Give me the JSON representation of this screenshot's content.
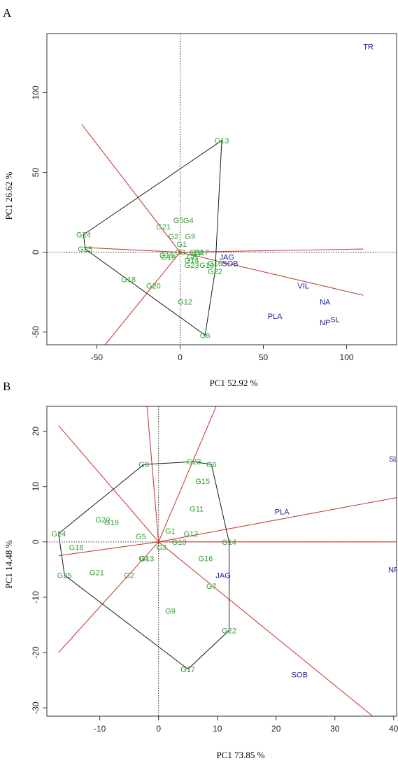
{
  "colors": {
    "genotype": "#2fa32f",
    "trait": "#1b1b9e",
    "hull": "#1a1a1a",
    "ray": "#c8403a",
    "frame": "#333333"
  },
  "chart_data": [
    {
      "panel": "A",
      "type": "scatter",
      "subtype": "GGE biplot (which-won-where)",
      "xlabel": "PC1 52.92 %",
      "ylabel": "PC1 26.62 %",
      "xlim": [
        -80,
        130
      ],
      "ylim": [
        -58,
        137
      ],
      "xticks": [
        -50,
        0,
        50,
        100
      ],
      "yticks": [
        -50,
        0,
        50,
        100
      ],
      "grid": false,
      "genotypes": [
        {
          "label": "G1",
          "x": 1,
          "y": 5
        },
        {
          "label": "G2",
          "x": -4,
          "y": 10
        },
        {
          "label": "G3",
          "x": 0,
          "y": 0
        },
        {
          "label": "G4",
          "x": 5,
          "y": 20
        },
        {
          "label": "G5",
          "x": -1,
          "y": 20
        },
        {
          "label": "G6",
          "x": 15,
          "y": -52
        },
        {
          "label": "G7",
          "x": 10,
          "y": -1
        },
        {
          "label": "G8",
          "x": 7,
          "y": -3
        },
        {
          "label": "G9",
          "x": 6,
          "y": 10
        },
        {
          "label": "G10",
          "x": 16,
          "y": -8
        },
        {
          "label": "G11",
          "x": 10,
          "y": 0
        },
        {
          "label": "G12",
          "x": 3,
          "y": -31
        },
        {
          "label": "G13",
          "x": 25,
          "y": 70
        },
        {
          "label": "G14",
          "x": 7,
          "y": -5
        },
        {
          "label": "G15",
          "x": -8,
          "y": -2
        },
        {
          "label": "G16",
          "x": 21,
          "y": -7
        },
        {
          "label": "G17",
          "x": 13,
          "y": 0
        },
        {
          "label": "G18",
          "x": -31,
          "y": -17
        },
        {
          "label": "G19",
          "x": -7,
          "y": -3
        },
        {
          "label": "G20",
          "x": -16,
          "y": -21
        },
        {
          "label": "G21",
          "x": -10,
          "y": 16
        },
        {
          "label": "G22",
          "x": 21,
          "y": -12
        },
        {
          "label": "G23",
          "x": 7,
          "y": -8
        },
        {
          "label": "G24",
          "x": -58,
          "y": 11
        },
        {
          "label": "G25",
          "x": -57,
          "y": 2
        }
      ],
      "traits": [
        {
          "label": "TR",
          "x": 113,
          "y": 129
        },
        {
          "label": "JAG",
          "x": 28,
          "y": -3
        },
        {
          "label": "SOB",
          "x": 30,
          "y": -7
        },
        {
          "label": "VIL",
          "x": 74,
          "y": -21
        },
        {
          "label": "NA",
          "x": 87,
          "y": -31
        },
        {
          "label": "SL",
          "x": 93,
          "y": -42
        },
        {
          "label": "NP",
          "x": 87,
          "y": -44
        },
        {
          "label": "PLA",
          "x": 57,
          "y": -40
        }
      ],
      "hull": [
        "G13",
        "G24",
        "G25",
        "G6",
        "G22"
      ],
      "rays": [
        {
          "x": -59,
          "y": 80
        },
        {
          "x": -45,
          "y": -58
        },
        {
          "x": 110,
          "y": -27
        },
        {
          "x": 110,
          "y": 2
        },
        {
          "x": -58,
          "y": 3
        }
      ]
    },
    {
      "panel": "B",
      "type": "scatter",
      "subtype": "GGE biplot (which-won-where)",
      "xlabel": "PC1 73.85 %",
      "ylabel": "PC1 14.48 %",
      "xlim": [
        -19,
        40.5
      ],
      "ylim": [
        -31.5,
        24.5
      ],
      "xticks": [
        -10,
        0,
        10,
        20,
        30,
        40
      ],
      "yticks": [
        -30,
        -20,
        -10,
        0,
        10,
        20
      ],
      "grid": false,
      "genotypes": [
        {
          "label": "G1",
          "x": 2,
          "y": 2
        },
        {
          "label": "G2",
          "x": -5,
          "y": -6
        },
        {
          "label": "G3",
          "x": 0.5,
          "y": -1
        },
        {
          "label": "G4",
          "x": -2.5,
          "y": -3
        },
        {
          "label": "G5",
          "x": -3,
          "y": 1
        },
        {
          "label": "G6",
          "x": 9,
          "y": 14
        },
        {
          "label": "G7",
          "x": 9,
          "y": -8
        },
        {
          "label": "G8",
          "x": -2.5,
          "y": 14
        },
        {
          "label": "G9",
          "x": 2,
          "y": -12.5
        },
        {
          "label": "G10",
          "x": 3.5,
          "y": 0
        },
        {
          "label": "G11",
          "x": 6.5,
          "y": 6
        },
        {
          "label": "G12",
          "x": 5.5,
          "y": 1.5
        },
        {
          "label": "G13",
          "x": -2,
          "y": -3
        },
        {
          "label": "G14",
          "x": 12,
          "y": 0
        },
        {
          "label": "G15",
          "x": 7.5,
          "y": 11
        },
        {
          "label": "G16",
          "x": 8,
          "y": -3
        },
        {
          "label": "G17",
          "x": 5,
          "y": -23
        },
        {
          "label": "G18",
          "x": -14,
          "y": -1
        },
        {
          "label": "G19",
          "x": -8,
          "y": 3.5
        },
        {
          "label": "G20",
          "x": -9.5,
          "y": 4
        },
        {
          "label": "G21",
          "x": -10.5,
          "y": -5.5
        },
        {
          "label": "G22",
          "x": 12,
          "y": -16
        },
        {
          "label": "G23",
          "x": 6,
          "y": 14.5
        },
        {
          "label": "G24",
          "x": -17,
          "y": 1.5
        },
        {
          "label": "G25",
          "x": -16,
          "y": -6
        }
      ],
      "traits": [
        {
          "label": "SL",
          "x": 40,
          "y": 15
        },
        {
          "label": "PLA",
          "x": 21,
          "y": 5.5
        },
        {
          "label": "NP",
          "x": 40,
          "y": -5
        },
        {
          "label": "JAG",
          "x": 11,
          "y": -6
        },
        {
          "label": "SOB",
          "x": 24,
          "y": -24
        }
      ],
      "hull": [
        "G8",
        "G23",
        "G6",
        "G14",
        "G22",
        "G17",
        "G25",
        "G24"
      ],
      "rays": [
        {
          "x": -17,
          "y": 21
        },
        {
          "x": -2,
          "y": 25
        },
        {
          "x": 10,
          "y": 25
        },
        {
          "x": 40.5,
          "y": 8
        },
        {
          "x": 40.5,
          "y": 0
        },
        {
          "x": 37,
          "y": -32
        },
        {
          "x": -17,
          "y": -20
        },
        {
          "x": -17,
          "y": -2.5
        }
      ]
    }
  ]
}
